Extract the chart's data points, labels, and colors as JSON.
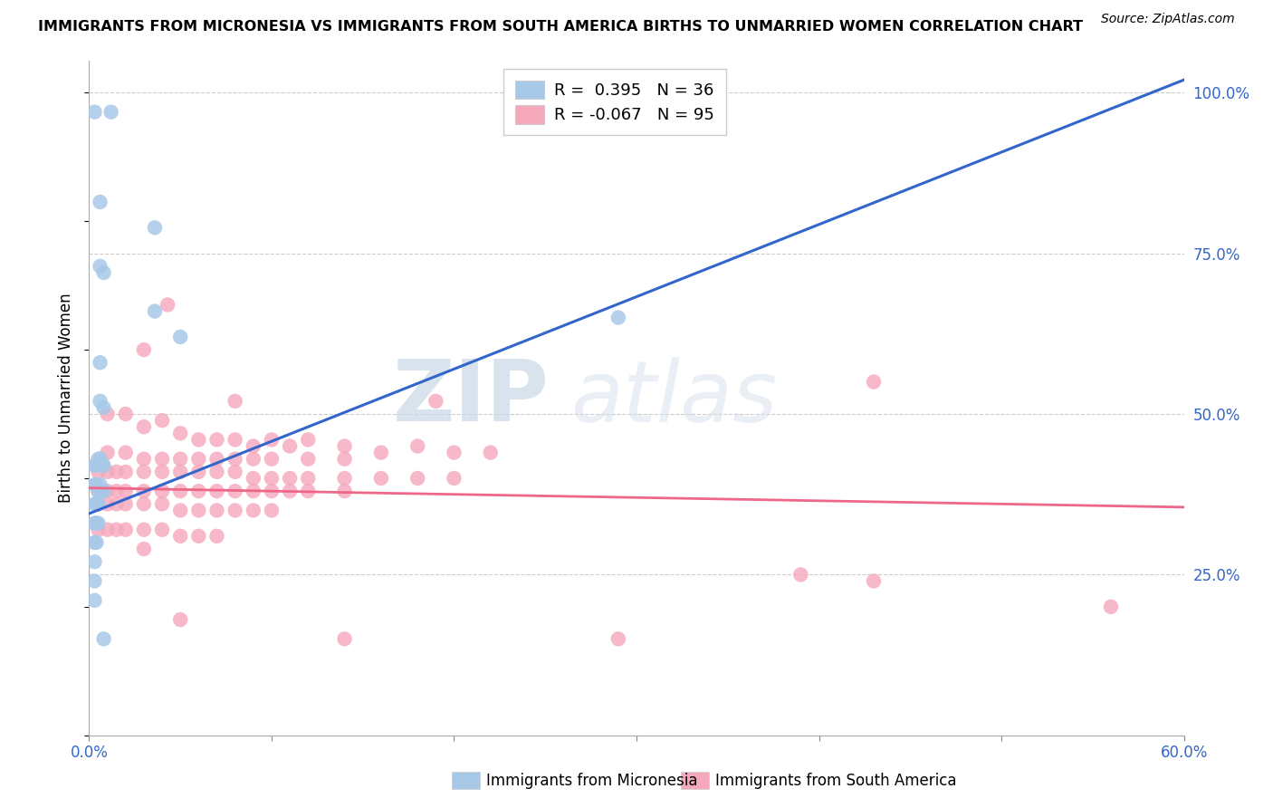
{
  "title": "IMMIGRANTS FROM MICRONESIA VS IMMIGRANTS FROM SOUTH AMERICA BIRTHS TO UNMARRIED WOMEN CORRELATION CHART",
  "source": "Source: ZipAtlas.com",
  "xlabel_micronesia": "Immigrants from Micronesia",
  "xlabel_south_america": "Immigrants from South America",
  "ylabel": "Births to Unmarried Women",
  "watermark_zip": "ZIP",
  "watermark_atlas": "atlas",
  "xlim": [
    0.0,
    0.6
  ],
  "ylim": [
    0.0,
    1.05
  ],
  "ytick_positions": [
    0.25,
    0.5,
    0.75,
    1.0
  ],
  "ytick_labels": [
    "25.0%",
    "50.0%",
    "75.0%",
    "100.0%"
  ],
  "r_micronesia": 0.395,
  "n_micronesia": 36,
  "r_south_america": -0.067,
  "n_south_america": 95,
  "color_micronesia": "#a8c8e8",
  "color_south_america": "#f5a8bc",
  "line_color_micronesia": "#3366cc",
  "line_color_south_america": "#ee6688",
  "mic_line_x0": 0.0,
  "mic_line_y0": 0.345,
  "mic_line_x1": 0.6,
  "mic_line_y1": 1.02,
  "sa_line_x0": 0.0,
  "sa_line_y0": 0.385,
  "sa_line_x1": 0.6,
  "sa_line_y1": 0.355,
  "micronesia_scatter": [
    [
      0.003,
      0.97
    ],
    [
      0.012,
      0.97
    ],
    [
      0.006,
      0.83
    ],
    [
      0.006,
      0.73
    ],
    [
      0.008,
      0.72
    ],
    [
      0.006,
      0.58
    ],
    [
      0.006,
      0.52
    ],
    [
      0.008,
      0.51
    ],
    [
      0.003,
      0.42
    ],
    [
      0.004,
      0.42
    ],
    [
      0.005,
      0.43
    ],
    [
      0.006,
      0.43
    ],
    [
      0.007,
      0.42
    ],
    [
      0.008,
      0.42
    ],
    [
      0.003,
      0.39
    ],
    [
      0.004,
      0.39
    ],
    [
      0.005,
      0.38
    ],
    [
      0.006,
      0.39
    ],
    [
      0.007,
      0.38
    ],
    [
      0.008,
      0.38
    ],
    [
      0.003,
      0.36
    ],
    [
      0.004,
      0.36
    ],
    [
      0.005,
      0.36
    ],
    [
      0.003,
      0.33
    ],
    [
      0.004,
      0.33
    ],
    [
      0.005,
      0.33
    ],
    [
      0.003,
      0.3
    ],
    [
      0.004,
      0.3
    ],
    [
      0.003,
      0.27
    ],
    [
      0.003,
      0.24
    ],
    [
      0.003,
      0.21
    ],
    [
      0.036,
      0.66
    ],
    [
      0.05,
      0.62
    ],
    [
      0.008,
      0.15
    ],
    [
      0.036,
      0.79
    ],
    [
      0.29,
      0.65
    ]
  ],
  "south_america_scatter": [
    [
      0.043,
      0.67
    ],
    [
      0.03,
      0.6
    ],
    [
      0.08,
      0.52
    ],
    [
      0.19,
      0.52
    ],
    [
      0.43,
      0.55
    ],
    [
      0.39,
      0.25
    ],
    [
      0.43,
      0.24
    ],
    [
      0.01,
      0.5
    ],
    [
      0.02,
      0.5
    ],
    [
      0.03,
      0.48
    ],
    [
      0.04,
      0.49
    ],
    [
      0.05,
      0.47
    ],
    [
      0.06,
      0.46
    ],
    [
      0.07,
      0.46
    ],
    [
      0.08,
      0.46
    ],
    [
      0.09,
      0.45
    ],
    [
      0.1,
      0.46
    ],
    [
      0.11,
      0.45
    ],
    [
      0.12,
      0.46
    ],
    [
      0.14,
      0.45
    ],
    [
      0.16,
      0.44
    ],
    [
      0.18,
      0.45
    ],
    [
      0.2,
      0.44
    ],
    [
      0.22,
      0.44
    ],
    [
      0.01,
      0.44
    ],
    [
      0.02,
      0.44
    ],
    [
      0.03,
      0.43
    ],
    [
      0.04,
      0.43
    ],
    [
      0.05,
      0.43
    ],
    [
      0.06,
      0.43
    ],
    [
      0.07,
      0.43
    ],
    [
      0.08,
      0.43
    ],
    [
      0.09,
      0.43
    ],
    [
      0.1,
      0.43
    ],
    [
      0.12,
      0.43
    ],
    [
      0.14,
      0.43
    ],
    [
      0.005,
      0.41
    ],
    [
      0.01,
      0.41
    ],
    [
      0.015,
      0.41
    ],
    [
      0.02,
      0.41
    ],
    [
      0.03,
      0.41
    ],
    [
      0.04,
      0.41
    ],
    [
      0.05,
      0.41
    ],
    [
      0.06,
      0.41
    ],
    [
      0.07,
      0.41
    ],
    [
      0.08,
      0.41
    ],
    [
      0.09,
      0.4
    ],
    [
      0.1,
      0.4
    ],
    [
      0.11,
      0.4
    ],
    [
      0.12,
      0.4
    ],
    [
      0.14,
      0.4
    ],
    [
      0.16,
      0.4
    ],
    [
      0.18,
      0.4
    ],
    [
      0.2,
      0.4
    ],
    [
      0.005,
      0.38
    ],
    [
      0.01,
      0.38
    ],
    [
      0.015,
      0.38
    ],
    [
      0.02,
      0.38
    ],
    [
      0.03,
      0.38
    ],
    [
      0.04,
      0.38
    ],
    [
      0.05,
      0.38
    ],
    [
      0.06,
      0.38
    ],
    [
      0.07,
      0.38
    ],
    [
      0.08,
      0.38
    ],
    [
      0.09,
      0.38
    ],
    [
      0.1,
      0.38
    ],
    [
      0.11,
      0.38
    ],
    [
      0.12,
      0.38
    ],
    [
      0.14,
      0.38
    ],
    [
      0.005,
      0.36
    ],
    [
      0.01,
      0.36
    ],
    [
      0.015,
      0.36
    ],
    [
      0.02,
      0.36
    ],
    [
      0.03,
      0.36
    ],
    [
      0.04,
      0.36
    ],
    [
      0.05,
      0.35
    ],
    [
      0.06,
      0.35
    ],
    [
      0.07,
      0.35
    ],
    [
      0.08,
      0.35
    ],
    [
      0.09,
      0.35
    ],
    [
      0.1,
      0.35
    ],
    [
      0.005,
      0.32
    ],
    [
      0.01,
      0.32
    ],
    [
      0.015,
      0.32
    ],
    [
      0.02,
      0.32
    ],
    [
      0.03,
      0.32
    ],
    [
      0.04,
      0.32
    ],
    [
      0.05,
      0.31
    ],
    [
      0.06,
      0.31
    ],
    [
      0.07,
      0.31
    ],
    [
      0.03,
      0.29
    ],
    [
      0.05,
      0.18
    ],
    [
      0.14,
      0.15
    ],
    [
      0.29,
      0.15
    ],
    [
      0.56,
      0.2
    ]
  ]
}
